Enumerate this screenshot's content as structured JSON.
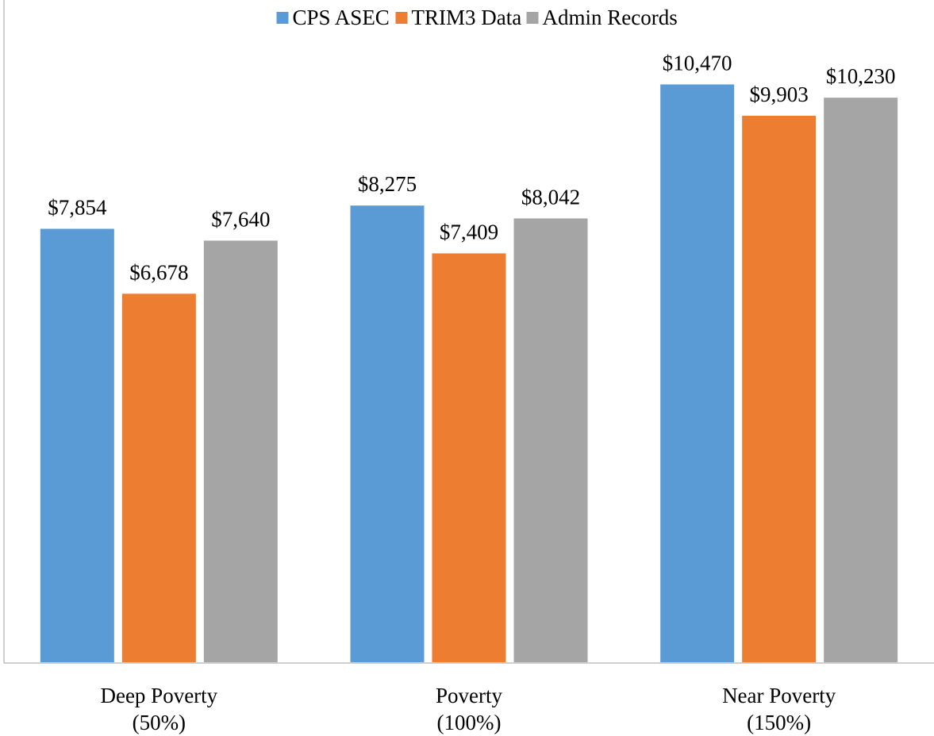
{
  "chart_data": {
    "type": "bar",
    "categories": [
      "Deep Poverty\n(50%)",
      "Poverty\n(100%)",
      "Near Poverty\n(150%)"
    ],
    "series": [
      {
        "name": "CPS ASEC",
        "color": "#5b9bd5",
        "values": [
          7854,
          8275,
          10470
        ],
        "value_labels": [
          "$7,854",
          "$8,275",
          "$10,470"
        ]
      },
      {
        "name": "TRIM3 Data",
        "color": "#ed7d31",
        "values": [
          6678,
          7409,
          9903
        ],
        "value_labels": [
          "$6,678",
          "$7,409",
          "$9,903"
        ]
      },
      {
        "name": "Admin Records",
        "color": "#a5a5a5",
        "values": [
          7640,
          8042,
          10230
        ],
        "value_labels": [
          "$7,640",
          "$8,042",
          "$10,230"
        ]
      }
    ],
    "ylim": [
      0,
      12000
    ],
    "legend": "top"
  }
}
